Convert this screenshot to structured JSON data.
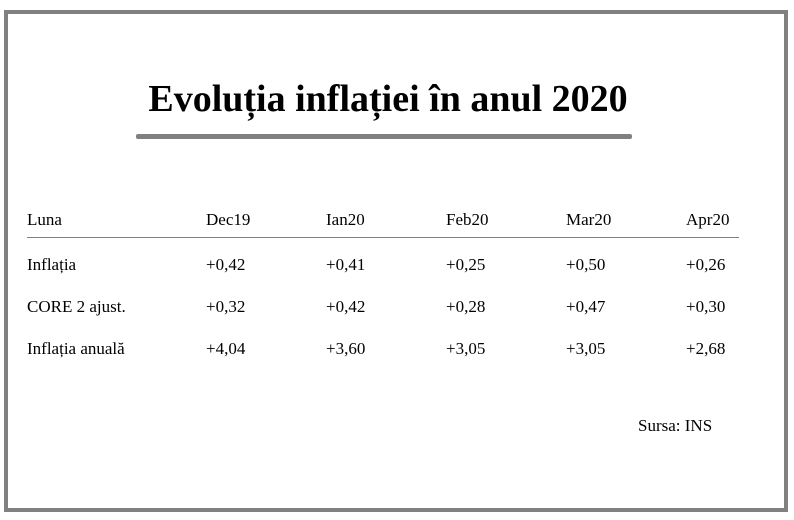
{
  "title": "Evoluția inflației în anul 2020",
  "table": {
    "headers": [
      "Luna",
      "Dec19",
      "Ian20",
      "Feb20",
      "Mar20",
      "Apr20"
    ],
    "rows": [
      [
        "Inflația",
        "+0,42",
        "+0,41",
        "+0,25",
        "+0,50",
        "+0,26"
      ],
      [
        "CORE 2 ajust.",
        "+0,32",
        "+0,42",
        "+0,28",
        "+0,47",
        "+0,30"
      ],
      [
        "Inflația anuală",
        "+4,04",
        "+3,60",
        "+3,05",
        "+3,05",
        "+2,68"
      ]
    ]
  },
  "source": "Sursa: INS",
  "colors": {
    "border": "#808080",
    "rule": "#808080",
    "text": "#000000"
  }
}
